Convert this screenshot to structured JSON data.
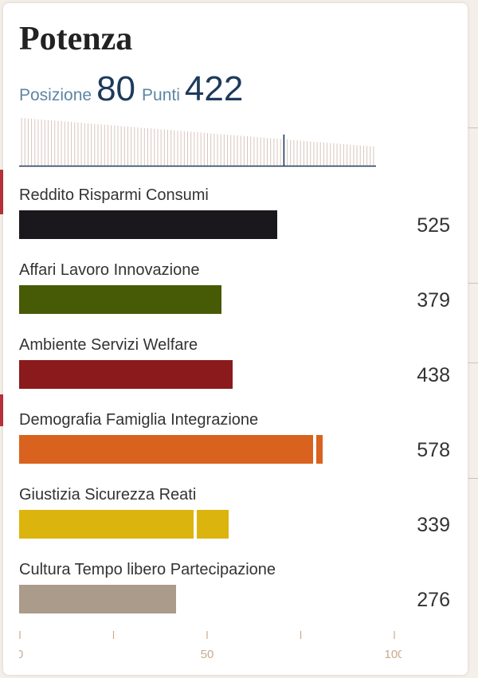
{
  "colors": {
    "text": "#333333",
    "title": "#222222",
    "posizione_label": "#5d86a3",
    "posizione_value": "#1e3a5c",
    "ranking_bar": "#d8c4bb",
    "ranking_marker": "#1e3a5c",
    "axis": "#c9a98e"
  },
  "card": {
    "title": "Potenza",
    "position_label": "Posizione",
    "position_value": "80",
    "points_label": "Punti",
    "points_value": "422"
  },
  "chart_data": {
    "type": "bar",
    "categories": [
      "Reddito Risparmi Consumi",
      "Affari Lavoro Innovazione",
      "Ambiente Servizi Welfare",
      "Demografia Famiglia Integrazione",
      "Giustizia Sicurezza Reati",
      "Cultura Tempo libero Partecipazione"
    ],
    "scores": [
      "525",
      "379",
      "438",
      "578",
      "339",
      "276"
    ],
    "values": [
      69,
      54,
      57,
      81,
      56,
      42
    ],
    "markers": [
      null,
      null,
      null,
      79,
      47,
      null
    ],
    "colors": [
      "#1b181d",
      "#475a06",
      "#8a1a1b",
      "#d9621f",
      "#dcb40e",
      "#ab9b8b"
    ],
    "xlim": [
      0,
      100
    ],
    "x_ticks": [
      0,
      25,
      50,
      75,
      100
    ],
    "x_tick_labels": [
      "0",
      "",
      "50",
      "",
      "100"
    ],
    "ranking_strip": {
      "count": 107,
      "highlight_rank": 80
    }
  }
}
